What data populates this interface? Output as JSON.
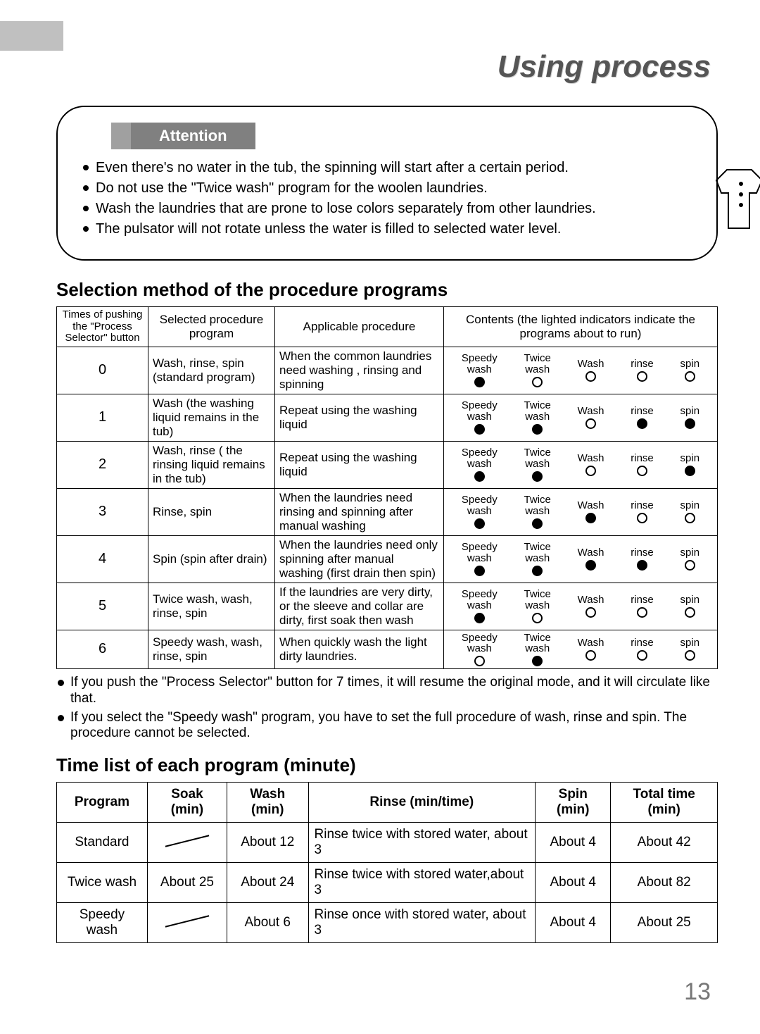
{
  "pageTitle": "Using process",
  "pageNumber": "13",
  "attention": {
    "label": "Attention",
    "items": [
      "Even  there's  no water  in the tub, the spinning will start after a certain period.",
      "Do not use the  \"Twice wash\"  program for the woolen laundries.",
      "Wash  the  laundries  that are prone to lose colors separately from other laundries.",
      "The pulsator will not rotate unless the water is filled to selected water level."
    ]
  },
  "procSection": {
    "heading": "Selection method of the procedure programs",
    "headers": {
      "times": "Times of pushing the \"Process Selector\" button",
      "selected": "Selected procedure program",
      "applicable": "Applicable procedure",
      "contents": "Contents (the lighted indicators indicate the programs about to run)"
    },
    "indicatorLabels": [
      "Speedy wash",
      "Twice wash",
      "Wash",
      "rinse",
      "spin"
    ],
    "rows": [
      {
        "n": "0",
        "sel": "Wash, rinse, spin (standard program)",
        "app": "When the common laundries need washing , rinsing and spinning",
        "ind": [
          true,
          false,
          false,
          false,
          false
        ]
      },
      {
        "n": "1",
        "sel": "Wash (the washing liquid remains in the tub)",
        "app": "Repeat using the washing liquid",
        "ind": [
          true,
          true,
          false,
          true,
          true
        ]
      },
      {
        "n": "2",
        "sel": "Wash, rinse ( the rinsing liquid remains in the tub)",
        "app": "Repeat using the washing liquid",
        "ind": [
          true,
          true,
          false,
          false,
          true
        ]
      },
      {
        "n": "3",
        "sel": "Rinse, spin",
        "app": "When the laundries need rinsing and spinning after manual washing",
        "ind": [
          true,
          true,
          true,
          false,
          false
        ]
      },
      {
        "n": "4",
        "sel": "Spin (spin after drain)",
        "app": "When the laundries need only spinning after manual washing (first drain then spin)",
        "ind": [
          true,
          true,
          true,
          true,
          false
        ]
      },
      {
        "n": "5",
        "sel": "Twice wash, wash, rinse, spin",
        "app": "If the laundries are very dirty, or the  sleeve and collar are dirty, first soak then wash",
        "ind": [
          true,
          false,
          false,
          false,
          false
        ]
      },
      {
        "n": "6",
        "sel": "Speedy  wash, wash, rinse, spin",
        "app": "When quickly wash the light dirty laundries.",
        "ind": [
          false,
          true,
          false,
          false,
          false
        ]
      }
    ],
    "notes": [
      "If you push the \"Process Selector\" button for 7 times, it will resume the original mode, and it will circulate like that.",
      "If you select the \"Speedy wash\" program, you have to set the full procedure of wash, rinse and spin. The procedure cannot be selected."
    ]
  },
  "timeSection": {
    "heading": "Time list of each program (minute)",
    "headers": [
      "Program",
      "Soak (min)",
      "Wash (min)",
      "Rinse (min/time)",
      "Spin (min)",
      "Total time (min)"
    ],
    "rows": [
      {
        "program": "Standard",
        "soak": null,
        "wash": "About 12",
        "rinse": "Rinse twice with stored water, about 3",
        "spin": "About 4",
        "total": "About 42"
      },
      {
        "program": "Twice wash",
        "soak": "About 25",
        "wash": "About 24",
        "rinse": "Rinse twice with stored water,about 3",
        "spin": "About 4",
        "total": "About 82"
      },
      {
        "program": "Speedy wash",
        "soak": null,
        "wash": "About 6",
        "rinse": "Rinse once with stored water, about 3",
        "spin": "About 4",
        "total": "About 25"
      }
    ]
  }
}
